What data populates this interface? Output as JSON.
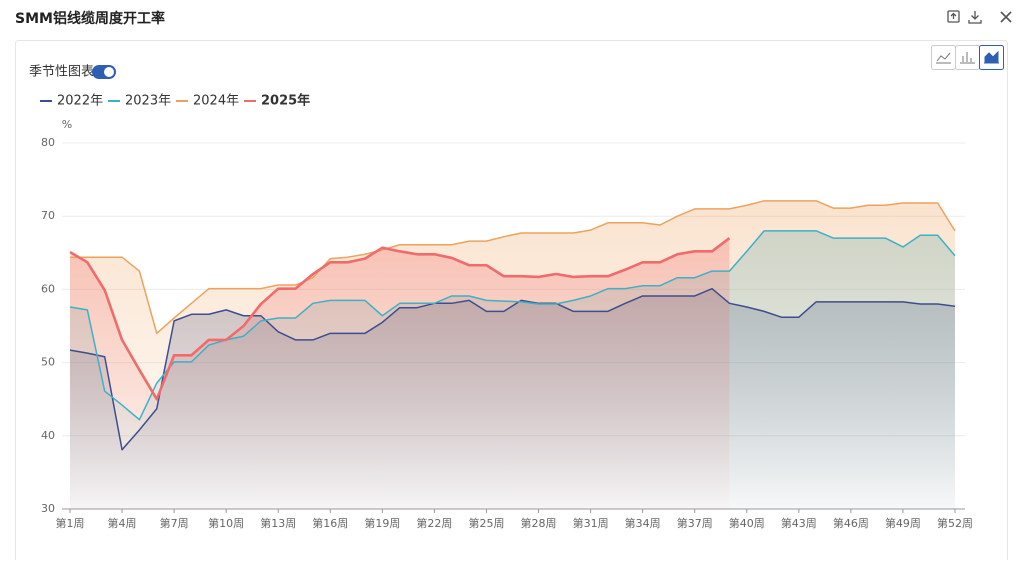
{
  "chart_data": {
    "type": "area",
    "title": "SMM铝线缆周度开工率",
    "toggle_label": "季节性图表",
    "y_unit": "%",
    "categories": [
      "第1周",
      null,
      null,
      "第4周",
      null,
      null,
      "第7周",
      null,
      null,
      "第10周",
      null,
      null,
      "第13周",
      null,
      null,
      "第16周",
      null,
      null,
      "第19周",
      null,
      null,
      "第22周",
      null,
      null,
      "第25周",
      null,
      null,
      "第28周",
      null,
      null,
      "第31周",
      null,
      null,
      "第34周",
      null,
      null,
      "第37周",
      null,
      null,
      "第40周",
      null,
      null,
      "第43周",
      null,
      null,
      "第46周",
      null,
      null,
      "第49周",
      null,
      null,
      "第52周"
    ],
    "series": [
      {
        "name": "2022年",
        "color": "#3d4e8e",
        "values": [
          51.7,
          51.3,
          50.8,
          38.1,
          40.8,
          43.7,
          55.7,
          56.6,
          56.6,
          57.2,
          56.4,
          56.4,
          54.2,
          53.1,
          53.1,
          54.0,
          54.0,
          54.0,
          55.5,
          57.5,
          57.5,
          58.1,
          58.1,
          58.5,
          57.0,
          57.0,
          58.5,
          58.1,
          58.1,
          57.0,
          57.0,
          57.0,
          58.1,
          59.1,
          59.1,
          59.1,
          59.1,
          60.1,
          58.1,
          57.6,
          57.0,
          56.2,
          56.2,
          58.3,
          58.3,
          58.3,
          58.3,
          58.3,
          58.3,
          58.0,
          58.0,
          57.7
        ]
      },
      {
        "name": "2023年",
        "color": "#3fb0c5",
        "values": [
          57.6,
          57.2,
          46.1,
          44.2,
          42.2,
          47.2,
          50.1,
          50.1,
          52.4,
          53.1,
          53.6,
          55.7,
          56.1,
          56.1,
          58.1,
          58.5,
          58.5,
          58.5,
          56.4,
          58.1,
          58.1,
          58.1,
          59.1,
          59.1,
          58.5,
          58.4,
          58.3,
          58.0,
          58.0,
          58.5,
          59.1,
          60.1,
          60.1,
          60.5,
          60.5,
          61.6,
          61.6,
          62.5,
          62.5,
          65.2,
          68.0,
          68.0,
          68.0,
          68.0,
          67.0,
          67.0,
          67.0,
          67.0,
          65.8,
          67.4,
          67.4,
          64.6
        ]
      },
      {
        "name": "2024年",
        "color": "#eea25c",
        "values": [
          64.4,
          64.4,
          64.4,
          64.4,
          62.5,
          54.0,
          56.1,
          58.1,
          60.1,
          60.1,
          60.1,
          60.1,
          60.6,
          60.6,
          61.6,
          64.2,
          64.4,
          64.8,
          65.4,
          66.1,
          66.1,
          66.1,
          66.1,
          66.6,
          66.6,
          67.2,
          67.7,
          67.7,
          67.7,
          67.7,
          68.1,
          69.1,
          69.1,
          69.1,
          68.8,
          70.0,
          71.0,
          71.0,
          71.0,
          71.5,
          72.1,
          72.1,
          72.1,
          72.1,
          71.1,
          71.1,
          71.5,
          71.5,
          71.8,
          71.8,
          71.8,
          68.0
        ]
      },
      {
        "name": "2025年",
        "color": "#f06b6b",
        "values": [
          65.1,
          63.7,
          59.9,
          53.1,
          49.0,
          45.0,
          51.0,
          51.0,
          53.1,
          53.1,
          55.0,
          58.0,
          60.1,
          60.1,
          62.1,
          63.7,
          63.7,
          64.2,
          65.7,
          65.2,
          64.8,
          64.8,
          64.3,
          63.3,
          63.3,
          61.8,
          61.8,
          61.7,
          62.1,
          61.7,
          61.8,
          61.8,
          62.7,
          63.7,
          63.7,
          64.8,
          65.2,
          65.2,
          67.0,
          null,
          null,
          null,
          null,
          null,
          null,
          null,
          null,
          null,
          null,
          null,
          null,
          null
        ]
      }
    ],
    "ylim": [
      30,
      80
    ],
    "yticks": [
      30,
      40,
      50,
      60,
      70,
      80
    ],
    "grid": true
  }
}
